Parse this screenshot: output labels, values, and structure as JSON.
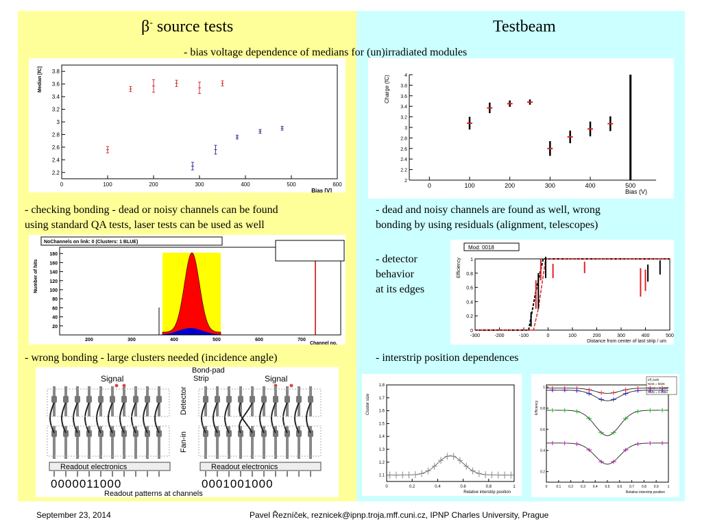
{
  "left": {
    "title_symbol": "β",
    "title_sup": "-",
    "title_rest": " source tests",
    "text1_line1": "- checking bonding - dead or noisy channels can be found",
    "text1_line2": "using standard QA tests, laser tests can be used as well",
    "text2": "- wrong bonding - large clusters needed (incidence angle)"
  },
  "right": {
    "title": "Testbeam",
    "text1_line1": "- dead and noisy channels are found as well, wrong",
    "text1_line2": "bonding by using residuals (alignment, telescopes)",
    "detector_line1": "- detector",
    "detector_line2": "behavior",
    "detector_line3": "at its edges",
    "text3": "- interstrip position dependences"
  },
  "subtitle": "- bias voltage dependence of medians for (un)irradiated modules",
  "footer": {
    "date": "September 23, 2014",
    "author": "Pavel Řezníček, reznicek@ipnp.troja.mff.cuni.cz, IPNP Charles University, Prague"
  },
  "colors": {
    "left_bg": "#ffff99",
    "right_bg": "#ccffff",
    "red_marker": "#cc3333",
    "blue_marker": "#333399"
  },
  "chart_data": [
    {
      "type": "scatter",
      "xlabel": "Bias [V]",
      "ylabel": "Median [fC]",
      "xlim": [
        0,
        600
      ],
      "ylim": [
        2.1,
        3.9
      ],
      "xticks": [
        "0",
        "100",
        "200",
        "300",
        "400",
        "500",
        "600"
      ],
      "yticks": [
        "2.2",
        "2.4",
        "2.6",
        "2.8",
        "3",
        "3.2",
        "3.4",
        "3.6",
        "3.8"
      ],
      "series": [
        {
          "x": [
            100,
            150,
            200,
            250,
            300,
            350
          ],
          "y": [
            2.56,
            3.52,
            3.57,
            3.61,
            3.54,
            3.61
          ],
          "err": [
            0.05,
            0.04,
            0.1,
            0.05,
            0.09,
            0.04
          ]
        },
        {
          "x": [
            285,
            335,
            382,
            432,
            480
          ],
          "y": [
            2.3,
            2.56,
            2.76,
            2.85,
            2.9
          ],
          "err": [
            0.06,
            0.07,
            0.03,
            0.03,
            0.03
          ]
        }
      ]
    },
    {
      "type": "scatter",
      "xlabel": "Bias (V)",
      "ylabel": "Charge (fC)",
      "xlim": [
        -50,
        550
      ],
      "ylim": [
        2,
        4
      ],
      "xticks": [
        "0",
        "100",
        "200",
        "300",
        "400",
        "500"
      ],
      "yticks": [
        "2",
        "2.2",
        "2.4",
        "2.6",
        "2.8",
        "3",
        "3.2",
        "3.4",
        "3.6",
        "3.8",
        "4"
      ],
      "series": [
        {
          "x": [
            100,
            150,
            200,
            250,
            300,
            350,
            400,
            450
          ],
          "y": [
            3.08,
            3.37,
            3.45,
            3.48,
            2.6,
            2.82,
            2.97,
            3.07
          ],
          "err": [
            0.12,
            0.1,
            0.06,
            0.05,
            0.14,
            0.12,
            0.14,
            0.14
          ]
        }
      ]
    },
    {
      "type": "bar",
      "title": "NoChannels on link: 0 (Clusters: 1 BLUE)",
      "ylabel": "Number of hits",
      "xlabel": "Channel no.",
      "xticks": [
        "200",
        "300",
        "400",
        "500",
        "600",
        "700"
      ],
      "yticks": [
        "20",
        "40",
        "60",
        "80",
        "100",
        "120",
        "140",
        "160",
        "180"
      ]
    },
    {
      "type": "line",
      "title": "Mod: 0018",
      "ylabel": "Efficiency",
      "xlabel": "Distance from center of last strip / um",
      "xlim": [
        -300,
        500
      ],
      "ylim": [
        0,
        1
      ],
      "xticks": [
        "-300",
        "-200",
        "-100",
        "0",
        "100",
        "200",
        "300",
        "400",
        "500"
      ],
      "yticks": [
        "0",
        "0.2",
        "0.4",
        "0.6",
        "0.8",
        "1"
      ]
    },
    {
      "type": "line",
      "ylabel": "Cluster size",
      "xlabel": "Relative interstrip position",
      "xlim": [
        0,
        1
      ],
      "ylim": [
        1.05,
        1.8
      ],
      "xticks": [
        "0",
        "0.2",
        "0.4",
        "0.6",
        "0.8",
        "1"
      ],
      "yticks": [
        "1.1",
        "1.2",
        "1.3",
        "1.4",
        "1.5",
        "1.6",
        "1.7",
        "1.8"
      ]
    },
    {
      "type": "line",
      "ylabel": "Efficiency",
      "xlabel": "Relative interstrip position",
      "legend": [
        "eff_both",
        "Nent = 5026",
        "Mean = 0.5037",
        "RMS = 0.2984"
      ],
      "xticks": [
        "0",
        "0.1",
        "0.2",
        "0.3",
        "0.4",
        "0.5",
        "0.6",
        "0.7",
        "0.8",
        "0.9",
        "1"
      ],
      "yticks": [
        "0.2",
        "0.4",
        "0.6",
        "0.8",
        "1"
      ]
    }
  ],
  "diagram": {
    "signal_label": "Signal",
    "bondpad_label": "Bond-pad",
    "strip_label": "Strip",
    "detector_label": "Detector",
    "fanin_label": "Fan-in",
    "readout_label": "Readout electronics",
    "pattern_left": "0000011000",
    "pattern_right": "0001001000",
    "patterns_caption": "Readout patterns at channels"
  }
}
